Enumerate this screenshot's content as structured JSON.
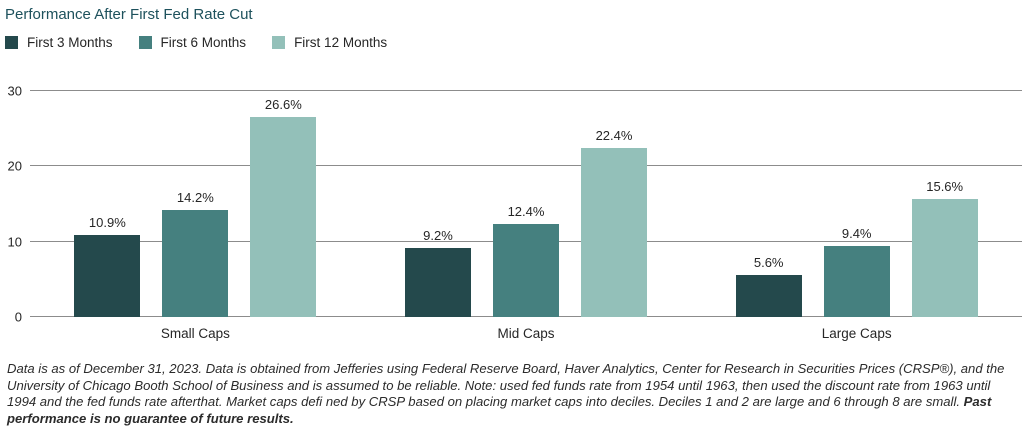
{
  "header": {
    "title": "Performance After First Fed Rate Cut"
  },
  "chart_data": {
    "type": "bar",
    "title": "Performance After First Fed Rate Cut",
    "categories": [
      "Small Caps",
      "Mid Caps",
      "Large Caps"
    ],
    "series": [
      {
        "name": "First 3 Months",
        "color": "#24494c",
        "values": [
          10.9,
          9.2,
          5.6
        ]
      },
      {
        "name": "First 6 Months",
        "color": "#45807f",
        "values": [
          14.2,
          12.4,
          9.4
        ]
      },
      {
        "name": "First 12 Months",
        "color": "#93c0b9",
        "values": [
          26.6,
          22.4,
          15.6
        ]
      }
    ],
    "value_suffix": "%",
    "xlabel": "",
    "ylabel": "",
    "ylim": [
      0,
      30
    ],
    "yticks": [
      0,
      10,
      20,
      30
    ],
    "grid": "horizontal",
    "legend_position": "top-left",
    "gridline_color": "#8c8c8c"
  },
  "footnote": {
    "text": "Data is as of December 31, 2023. Data is obtained from Jefferies using Federal Reserve Board, Haver Analytics, Center for Research in Securities Prices (CRSP®), and the University of Chicago Booth School of Business and is assumed to be reliable. Note: used fed funds rate from 1954 until 1963, then used the discount rate from 1963 until 1994 and the fed funds rate afterthat. Market caps defi ned by CRSP based on placing market caps into deciles. Deciles 1 and 2 are large and 6 through 8 are small. ",
    "bold_text": "Past performance is no guarantee of future results."
  }
}
